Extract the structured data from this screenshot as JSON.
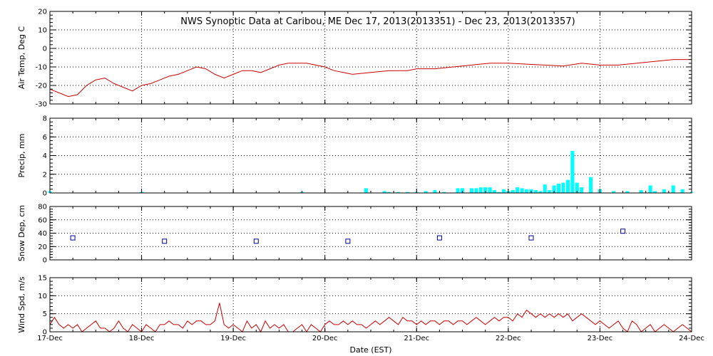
{
  "chart_data": {
    "title": "NWS Synoptic Data at Caribou, ME    Dec 17, 2013(2013351) - Dec 23, 2013(2013357)",
    "xlabel": "Date (EST)",
    "x_ticks": [
      "17-Dec",
      "18-Dec",
      "19-Dec",
      "20-Dec",
      "21-Dec",
      "22-Dec",
      "23-Dec",
      "24-Dec"
    ],
    "x_range_days": [
      0,
      7
    ],
    "panels": [
      {
        "id": "air-temp",
        "type": "line",
        "ylabel": "Air Temp, Deg C",
        "ylim": [
          -30,
          20
        ],
        "yticks": [
          -30,
          -20,
          -10,
          0,
          10,
          20
        ],
        "color": "#cc0000",
        "x": [
          0,
          0.1,
          0.2,
          0.3,
          0.4,
          0.5,
          0.6,
          0.7,
          0.8,
          0.9,
          1.0,
          1.1,
          1.2,
          1.3,
          1.4,
          1.5,
          1.6,
          1.7,
          1.8,
          1.9,
          2.0,
          2.1,
          2.2,
          2.3,
          2.4,
          2.5,
          2.6,
          2.7,
          2.8,
          2.9,
          3.0,
          3.1,
          3.2,
          3.3,
          3.5,
          3.7,
          3.9,
          4.0,
          4.2,
          4.4,
          4.6,
          4.8,
          5.0,
          5.2,
          5.4,
          5.6,
          5.8,
          6.0,
          6.2,
          6.4,
          6.6,
          6.8,
          7.0
        ],
        "values": [
          -22,
          -24,
          -26,
          -25,
          -20,
          -17,
          -16,
          -19,
          -21,
          -23,
          -20,
          -19,
          -17,
          -15,
          -14,
          -12,
          -10,
          -11,
          -14,
          -16,
          -14,
          -12,
          -12,
          -13,
          -11,
          -9,
          -8,
          -8,
          -8,
          -9,
          -10,
          -12,
          -13,
          -14,
          -13,
          -12,
          -12,
          -11,
          -11,
          -10,
          -9,
          -8,
          -8,
          -8.5,
          -9,
          -9.5,
          -8,
          -9,
          -9,
          -8,
          -7,
          -6,
          -6
        ]
      },
      {
        "id": "precip",
        "type": "bar",
        "ylabel": "Precip, mm",
        "ylim": [
          0,
          8
        ],
        "yticks": [
          0,
          2,
          4,
          6,
          8
        ],
        "color": "#00ffff",
        "bar_width_days": 0.04,
        "x": [
          0.0,
          1.0,
          2.75,
          3.45,
          3.65,
          3.7,
          3.8,
          3.9,
          4.0,
          4.1,
          4.2,
          4.3,
          4.45,
          4.5,
          4.6,
          4.65,
          4.7,
          4.75,
          4.8,
          4.85,
          4.9,
          4.95,
          5.0,
          5.05,
          5.1,
          5.15,
          5.2,
          5.25,
          5.3,
          5.35,
          5.4,
          5.45,
          5.5,
          5.55,
          5.6,
          5.65,
          5.7,
          5.75,
          5.8,
          5.9,
          6.0,
          6.15,
          6.3,
          6.45,
          6.55,
          6.6,
          6.7,
          6.8,
          6.9,
          7.0
        ],
        "values": [
          0.2,
          0.1,
          0.1,
          0.5,
          0.2,
          0.1,
          0.1,
          0.1,
          0.1,
          0.2,
          0.3,
          0.1,
          0.5,
          0.5,
          0.5,
          0.5,
          0.6,
          0.6,
          0.6,
          0.3,
          0.1,
          0.4,
          0.2,
          0.3,
          0.6,
          0.5,
          0.4,
          0.4,
          0.3,
          0.2,
          0.9,
          0.3,
          0.8,
          1.0,
          1.1,
          1.4,
          4.5,
          1.1,
          0.6,
          1.7,
          0.4,
          0.2,
          0.2,
          0.3,
          0.8,
          0.2,
          0.4,
          0.8,
          0.4,
          0.1
        ]
      },
      {
        "id": "snow-depth",
        "type": "scatter",
        "ylabel": "Snow Dep, cm",
        "ylim": [
          0,
          80
        ],
        "yticks": [
          0,
          20,
          40,
          60,
          80
        ],
        "color": "#000099",
        "x": [
          0.25,
          1.25,
          2.25,
          3.25,
          4.25,
          5.25,
          6.25
        ],
        "values": [
          33,
          28,
          28,
          28,
          33,
          33,
          43
        ]
      },
      {
        "id": "wind-speed",
        "type": "line",
        "ylabel": "Wind Spd, m/s",
        "ylim": [
          0,
          15
        ],
        "yticks": [
          0,
          5,
          10,
          15
        ],
        "color": "#cc0000",
        "x": [
          0,
          0.05,
          0.1,
          0.15,
          0.2,
          0.25,
          0.3,
          0.35,
          0.4,
          0.45,
          0.5,
          0.55,
          0.6,
          0.65,
          0.7,
          0.75,
          0.8,
          0.85,
          0.9,
          0.95,
          1.0,
          1.05,
          1.1,
          1.15,
          1.2,
          1.25,
          1.3,
          1.35,
          1.4,
          1.45,
          1.5,
          1.55,
          1.6,
          1.65,
          1.7,
          1.75,
          1.8,
          1.85,
          1.9,
          1.95,
          2.0,
          2.05,
          2.1,
          2.15,
          2.2,
          2.25,
          2.3,
          2.35,
          2.4,
          2.45,
          2.5,
          2.55,
          2.6,
          2.65,
          2.7,
          2.75,
          2.8,
          2.85,
          2.9,
          2.95,
          3.0,
          3.05,
          3.1,
          3.15,
          3.2,
          3.25,
          3.3,
          3.35,
          3.4,
          3.45,
          3.5,
          3.55,
          3.6,
          3.65,
          3.7,
          3.75,
          3.8,
          3.85,
          3.9,
          3.95,
          4.0,
          4.05,
          4.1,
          4.15,
          4.2,
          4.25,
          4.3,
          4.35,
          4.4,
          4.45,
          4.5,
          4.55,
          4.6,
          4.65,
          4.7,
          4.75,
          4.8,
          4.85,
          4.9,
          4.95,
          5.0,
          5.05,
          5.1,
          5.15,
          5.2,
          5.25,
          5.3,
          5.35,
          5.4,
          5.45,
          5.5,
          5.55,
          5.6,
          5.65,
          5.7,
          5.75,
          5.8,
          5.85,
          5.9,
          5.95,
          6.0,
          6.05,
          6.1,
          6.15,
          6.2,
          6.25,
          6.3,
          6.35,
          6.4,
          6.45,
          6.5,
          6.55,
          6.6,
          6.65,
          6.7,
          6.75,
          6.8,
          6.85,
          6.9,
          6.95,
          7.0
        ],
        "values": [
          2,
          4,
          2,
          1,
          2,
          1,
          2,
          0,
          1,
          2,
          3,
          1,
          1,
          0,
          1,
          3,
          1,
          0,
          2,
          1,
          0,
          2,
          1,
          0,
          2,
          2,
          3,
          2,
          2,
          1,
          3,
          2,
          3,
          3,
          2,
          2,
          3,
          8,
          2,
          1,
          2,
          1,
          0,
          3,
          1,
          2,
          0,
          3,
          1,
          2,
          1,
          2,
          0,
          0,
          1,
          2,
          0,
          2,
          1,
          0,
          2,
          3,
          2,
          2,
          3,
          2,
          3,
          2,
          2,
          1,
          2,
          3,
          2,
          3,
          4,
          3,
          2,
          4,
          3,
          3,
          2,
          3,
          2,
          3,
          3,
          2,
          3,
          3,
          2,
          3,
          3,
          2,
          3,
          4,
          3,
          2,
          3,
          4,
          3,
          4,
          4,
          3,
          5,
          4,
          6,
          5,
          4,
          5,
          4,
          5,
          4,
          5,
          4,
          5,
          3,
          4,
          5,
          4,
          3,
          2,
          3,
          2,
          1,
          2,
          3,
          1,
          0,
          3,
          2,
          0,
          1,
          2,
          0,
          1,
          2,
          1,
          0,
          1,
          2,
          1,
          0
        ]
      }
    ]
  }
}
